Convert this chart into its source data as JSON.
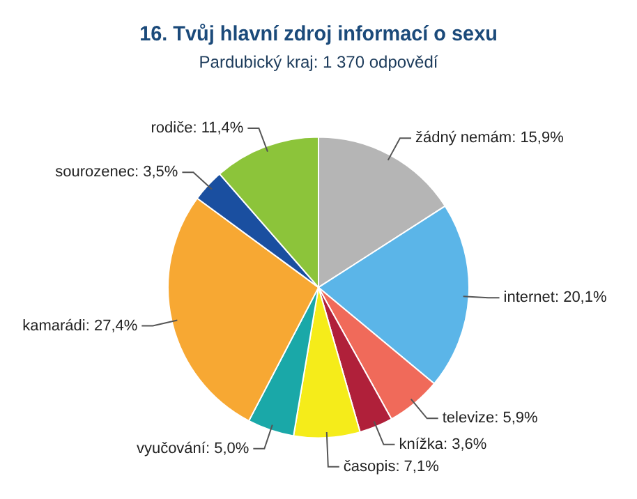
{
  "chart_data": {
    "type": "pie",
    "title": "16. Tvůj hlavní zdroj informací o sexu",
    "subtitle": "Pardubický kraj: 1 370 odpovědí",
    "categories": [
      "žádný nemám",
      "internet",
      "televize",
      "knížka",
      "časopis",
      "vyučování",
      "kamarádi",
      "sourozenec",
      "rodiče"
    ],
    "values": [
      15.9,
      20.1,
      5.9,
      3.6,
      7.1,
      5.0,
      27.4,
      3.5,
      11.4
    ],
    "value_labels": [
      "15,9%",
      "20,1%",
      "5,9%",
      "3,6%",
      "7,1%",
      "5,0%",
      "27,4%",
      "3,5%",
      "11,4%"
    ],
    "colors": [
      "#b5b5b5",
      "#5bb5e8",
      "#f06a5a",
      "#b0203a",
      "#f5ec1a",
      "#1aa8a8",
      "#f7a833",
      "#1a4fa0",
      "#8cc43a"
    ],
    "legend": false
  }
}
